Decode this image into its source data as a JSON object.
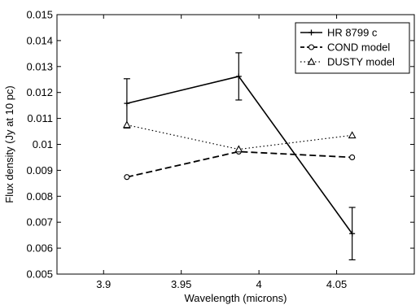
{
  "chart_data": {
    "type": "line",
    "xlabel": "Wavelength (microns)",
    "ylabel": "Flux density (Jy at 10 pc)",
    "xlim": [
      3.87,
      4.1
    ],
    "ylim": [
      0.005,
      0.015
    ],
    "xticks": [
      3.9,
      3.95,
      4.0,
      4.05
    ],
    "xtick_labels": [
      "3.9",
      "3.95",
      "4",
      "4.05"
    ],
    "yticks": [
      0.005,
      0.006,
      0.007,
      0.008,
      0.009,
      0.01,
      0.011,
      0.012,
      0.013,
      0.014,
      0.015
    ],
    "ytick_labels": [
      "0.005",
      "0.006",
      "0.007",
      "0.008",
      "0.009",
      "0.01",
      "0.011",
      "0.012",
      "0.013",
      "0.014",
      "0.015"
    ],
    "grid": false,
    "legend_position": "top-right",
    "series": [
      {
        "name": "HR 8799 c",
        "x": [
          3.915,
          3.987,
          4.06
        ],
        "y": [
          0.01158,
          0.01262,
          0.00656
        ],
        "yerr": [
          0.00095,
          0.00091,
          0.00101
        ],
        "line_style": "solid",
        "marker": "plus",
        "color": "#000000"
      },
      {
        "name": "COND model",
        "x": [
          3.915,
          3.987,
          4.06
        ],
        "y": [
          0.00874,
          0.00972,
          0.0095
        ],
        "line_style": "dashed",
        "marker": "circle",
        "color": "#000000"
      },
      {
        "name": "DUSTY model",
        "x": [
          3.915,
          3.987,
          4.06
        ],
        "y": [
          0.01075,
          0.00981,
          0.01035
        ],
        "line_style": "dotted",
        "marker": "triangle",
        "color": "#000000"
      }
    ]
  }
}
